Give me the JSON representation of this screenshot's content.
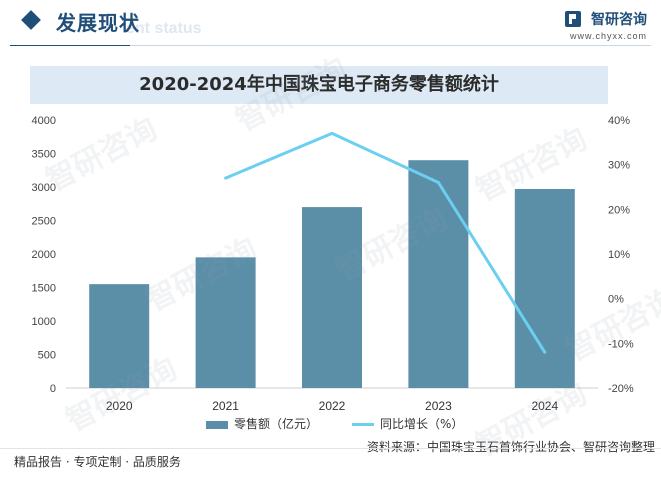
{
  "header": {
    "section_title": "发展现状",
    "section_sub": "ent status",
    "brand_name": "智研咨询",
    "brand_url": "www.chyxx.com"
  },
  "watermark_text": "智研咨询",
  "colors": {
    "bar": "#5b8fa8",
    "line": "#6ccff0",
    "accent": "#1f4e79",
    "title_band": "#ddeaf5"
  },
  "chart_data": {
    "type": "bar",
    "title": "2020-2024年中国珠宝电子商务零售额统计",
    "categories": [
      "2020",
      "2021",
      "2022",
      "2023",
      "2024"
    ],
    "series": [
      {
        "name": "零售额（亿元）",
        "type": "bar",
        "axis": "left",
        "values": [
          1550,
          1950,
          2700,
          3400,
          2970
        ]
      },
      {
        "name": "同比增长（%）",
        "type": "line",
        "axis": "right",
        "values": [
          null,
          27,
          37,
          26,
          -12
        ]
      }
    ],
    "y_left": {
      "min": 0,
      "max": 4000,
      "step": 500
    },
    "y_right": {
      "min": -20,
      "max": 40,
      "step": 10,
      "unit": "%"
    },
    "grid": false,
    "legend": "bottom"
  },
  "footer": {
    "source": "资料来源：中国珠宝玉石首饰行业协会、智研咨询整理",
    "tagline": "精品报告 · 专项定制 · 品质服务"
  }
}
